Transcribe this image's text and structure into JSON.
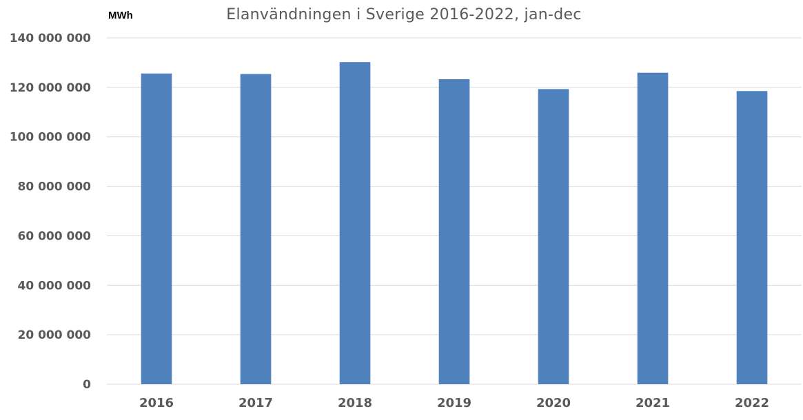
{
  "chart_data": {
    "type": "bar",
    "title": "Elanvändningen i Sverige 2016-2022, jan-dec",
    "unit_label": "MWh",
    "categories": [
      "2016",
      "2017",
      "2018",
      "2019",
      "2020",
      "2021",
      "2022"
    ],
    "values": [
      125600000,
      125400000,
      130200000,
      123300000,
      119300000,
      125900000,
      118500000
    ],
    "ylim": [
      0,
      140000000
    ],
    "yticks": [
      {
        "value": 0,
        "label": "0"
      },
      {
        "value": 20000000,
        "label": "20 000 000"
      },
      {
        "value": 40000000,
        "label": "40 000 000"
      },
      {
        "value": 60000000,
        "label": "60 000 000"
      },
      {
        "value": 80000000,
        "label": "80 000 000"
      },
      {
        "value": 100000000,
        "label": "100 000 000"
      },
      {
        "value": 120000000,
        "label": "120 000 000"
      },
      {
        "value": 140000000,
        "label": "140 000 000"
      }
    ],
    "grid": true,
    "legend": "none",
    "bar_color": "#4f81bd"
  }
}
